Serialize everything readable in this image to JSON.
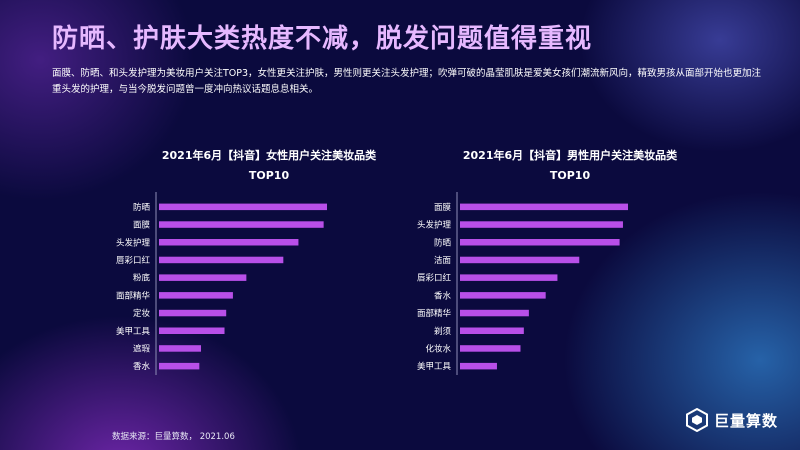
{
  "header": {
    "title": "防晒、护肤大类热度不减，脱发问题值得重视",
    "description": "面膜、防晒、和头发护理为美妆用户关注TOP3，女性更关注护肤，男性则更关注头发护理；吹弹可破的晶莹肌肤是爱美女孩们潮流新风向，精致男孩从面部开始也更加注重头发的护理，与当今脱发问题曾一度冲向热议话题息息相关。"
  },
  "chart_data": [
    {
      "type": "bar",
      "orientation": "horizontal",
      "title": "2021年6月【抖音】女性用户关注美妆品类",
      "subtitle": "TOP10",
      "categories": [
        "防晒",
        "面膜",
        "头发护理",
        "唇彩口红",
        "粉底",
        "面部精华",
        "定妆",
        "美甲工具",
        "遮瑕",
        "香水"
      ],
      "values": [
        100,
        98,
        83,
        74,
        52,
        44,
        40,
        39,
        25,
        24
      ],
      "xlim": [
        0,
        100
      ],
      "grid": false,
      "bar_color": "#b84fe8"
    },
    {
      "type": "bar",
      "orientation": "horizontal",
      "title": "2021年6月【抖音】男性用户关注美妆品类",
      "subtitle": "TOP10",
      "categories": [
        "面膜",
        "头发护理",
        "防晒",
        "洁面",
        "唇彩口红",
        "香水",
        "面部精华",
        "剃须",
        "化妆水",
        "美甲工具"
      ],
      "values": [
        100,
        97,
        95,
        71,
        58,
        51,
        41,
        38,
        36,
        22
      ],
      "xlim": [
        0,
        100
      ],
      "grid": false,
      "bar_color": "#b84fe8"
    }
  ],
  "footer": {
    "source": "数据来源：巨量算数，  2021.06"
  },
  "logo": {
    "text": "巨量算数",
    "icon": "hexagon-logo-icon"
  }
}
